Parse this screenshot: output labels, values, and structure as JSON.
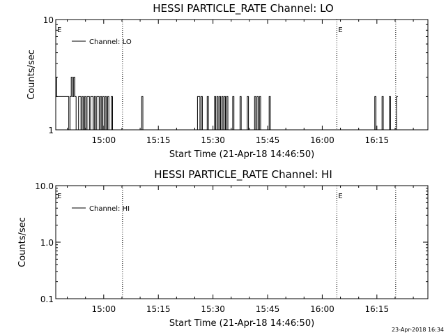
{
  "footer": {
    "timestamp": "23-Apr-2018 16:34"
  },
  "chart_data": [
    {
      "type": "line",
      "title": "HESSI PARTICLE_RATE Channel: LO",
      "xlabel": "Start Time (21-Apr-18 14:46:50)",
      "ylabel": "Counts/sec",
      "yscale": "log",
      "ylim": [
        1,
        10
      ],
      "ytick_labels": [
        "1",
        "10"
      ],
      "xlim": [
        "14:46:50",
        "16:29:00"
      ],
      "xtick_labels": [
        "15:00",
        "15:15",
        "15:30",
        "15:45",
        "16:00",
        "16:15"
      ],
      "legend": {
        "label": "Channel: LO",
        "placement": "top-left"
      },
      "grid": false,
      "markers": [
        {
          "time": "14:46:50",
          "label": "E"
        },
        {
          "time": "15:05:10",
          "label": ""
        },
        {
          "time": "16:04:00",
          "label": "E"
        },
        {
          "time": "16:20:10",
          "label": ""
        }
      ],
      "series": [
        {
          "time": [
            "14:46:50",
            "14:47:05",
            "14:47:25",
            "14:50:05",
            "14:50:25",
            "14:50:45",
            "14:51:05",
            "14:51:25",
            "14:51:45",
            "14:52:05",
            "14:52:25",
            "14:53:05",
            "14:53:25",
            "14:53:45",
            "14:54:05",
            "14:54:25",
            "14:54:45",
            "14:55:05",
            "14:55:25",
            "14:55:45",
            "14:56:05",
            "14:56:25",
            "14:56:45",
            "14:57:05",
            "14:57:25",
            "14:57:45",
            "14:58:05",
            "14:58:25",
            "14:58:45",
            "14:59:05",
            "14:59:25",
            "14:59:45",
            "15:00:05",
            "15:00:25",
            "15:00:45",
            "15:01:05",
            "15:01:25",
            "15:02:05",
            "15:02:25",
            "15:10:05",
            "15:10:25",
            "15:10:45",
            "15:25:25",
            "15:25:45",
            "15:26:05",
            "15:26:25",
            "15:26:45",
            "15:27:05",
            "15:28:05",
            "15:28:25",
            "15:28:45",
            "15:30:05",
            "15:30:25",
            "15:30:45",
            "15:31:05",
            "15:31:25",
            "15:31:45",
            "15:32:05",
            "15:32:25",
            "15:32:45",
            "15:33:05",
            "15:33:25",
            "15:33:45",
            "15:34:05",
            "15:34:25",
            "15:35:05",
            "15:35:25",
            "15:35:45",
            "15:37:05",
            "15:37:25",
            "15:37:45",
            "15:39:05",
            "15:39:25",
            "15:39:45",
            "15:41:05",
            "15:41:25",
            "15:41:45",
            "15:42:05",
            "15:42:25",
            "15:42:45",
            "15:43:05",
            "15:43:25",
            "15:45:05",
            "15:45:25",
            "15:45:45",
            "16:14:05",
            "16:14:25",
            "16:14:45",
            "16:16:05",
            "16:16:25",
            "16:16:45",
            "16:18:05",
            "16:18:25",
            "16:18:45",
            "16:20:05",
            "16:20:25",
            "16:20:45"
          ],
          "values": [
            3,
            2,
            2,
            2,
            1,
            2,
            3,
            2,
            3,
            2,
            1,
            2,
            2,
            1,
            2,
            1,
            2,
            1,
            2,
            2,
            1,
            2,
            2,
            1,
            2,
            1,
            2,
            2,
            1,
            2,
            1,
            2,
            1,
            2,
            1,
            2,
            1,
            2,
            1,
            1,
            2,
            1,
            1,
            2,
            2,
            1,
            2,
            1,
            1,
            2,
            1,
            1,
            2,
            1,
            2,
            1,
            2,
            1,
            2,
            1,
            2,
            1,
            2,
            1,
            1,
            1,
            2,
            1,
            1,
            2,
            1,
            1,
            2,
            1,
            1,
            2,
            1,
            2,
            1,
            2,
            1,
            1,
            1,
            2,
            1,
            1,
            2,
            1,
            1,
            2,
            1,
            1,
            2,
            1,
            1,
            2,
            2
          ]
        }
      ]
    },
    {
      "type": "line",
      "title": "HESSI PARTICLE_RATE Channel: HI",
      "xlabel": "Start Time (21-Apr-18 14:46:50)",
      "ylabel": "Counts/sec",
      "yscale": "log",
      "ylim": [
        0.1,
        10
      ],
      "ytick_labels": [
        "0.1",
        "1.0",
        "10.0"
      ],
      "xlim": [
        "14:46:50",
        "16:29:00"
      ],
      "xtick_labels": [
        "15:00",
        "15:15",
        "15:30",
        "15:45",
        "16:00",
        "16:15"
      ],
      "legend": {
        "label": "Channel: HI",
        "placement": "top-left"
      },
      "grid": false,
      "markers": [
        {
          "time": "14:46:50",
          "label": "E"
        },
        {
          "time": "15:05:10",
          "label": ""
        },
        {
          "time": "16:04:00",
          "label": "E"
        },
        {
          "time": "16:20:10",
          "label": ""
        }
      ],
      "series": [
        {
          "time": [],
          "values": []
        }
      ]
    }
  ]
}
